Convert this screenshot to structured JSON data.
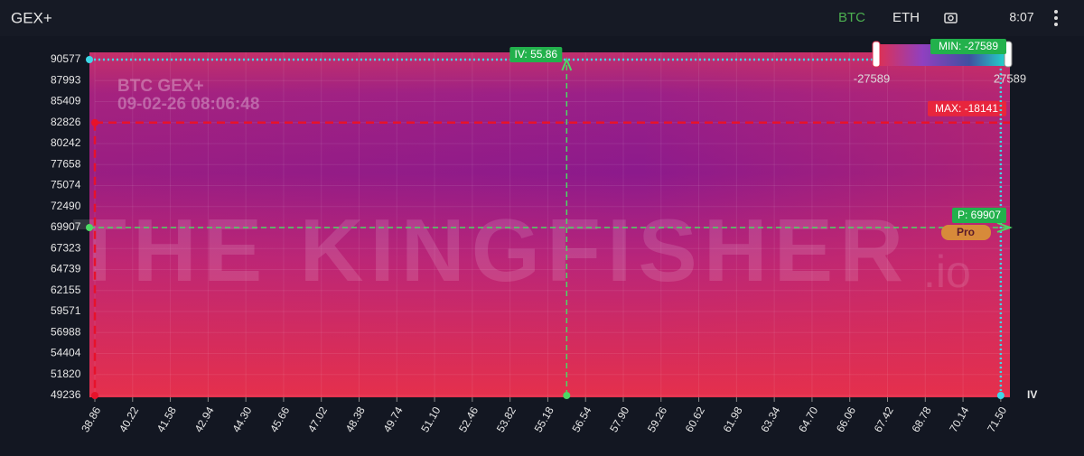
{
  "header": {
    "title": "GEX+",
    "tabs": [
      "BTC",
      "ETH"
    ],
    "time": "8:07"
  },
  "chart_data": {
    "type": "heatmap",
    "watermark_title": "BTC GEX+",
    "watermark_time": "09-02-26 08:06:48",
    "brand": "THE KINGFISHER",
    "brand_suffix": ".io",
    "x_label": "IV",
    "xlim": [
      38.86,
      71.83
    ],
    "xticks": [
      38.86,
      40.22,
      41.58,
      42.94,
      {
        "value": 44.3,
        "label": "44.30"
      },
      45.66,
      47.02,
      48.38,
      49.74,
      {
        "value": 51.1,
        "label": "51.10"
      },
      52.46,
      53.82,
      55.18,
      56.54,
      {
        "value": 57.9,
        "label": "57.90"
      },
      59.26,
      60.62,
      61.98,
      63.34,
      {
        "value": 64.7,
        "label": "64.70"
      },
      66.06,
      67.42,
      68.78,
      70.14,
      {
        "value": 71.5,
        "label": "71.50"
      }
    ],
    "ylim": [
      49236,
      90577
    ],
    "yticks": [
      49236,
      51820,
      54404,
      56988,
      59571,
      62155,
      64739,
      67323,
      69907,
      72490,
      75074,
      77658,
      80242,
      82826,
      85409,
      87993,
      90577
    ],
    "grid": true,
    "iv_marker": {
      "label": "IV: 55.86",
      "value": 55.86
    },
    "price_marker": {
      "label": "P: 69907",
      "value": 69907
    },
    "max_marker": {
      "label": "MAX: -18141",
      "value": -18141,
      "x": 38.86,
      "y": 82826
    },
    "min_marker": {
      "label": "MIN: -27589",
      "value": -27589,
      "x": 71.5,
      "y": 90577
    },
    "colorbar": {
      "range": [
        -27589,
        27589
      ]
    },
    "badge": "Pro"
  }
}
